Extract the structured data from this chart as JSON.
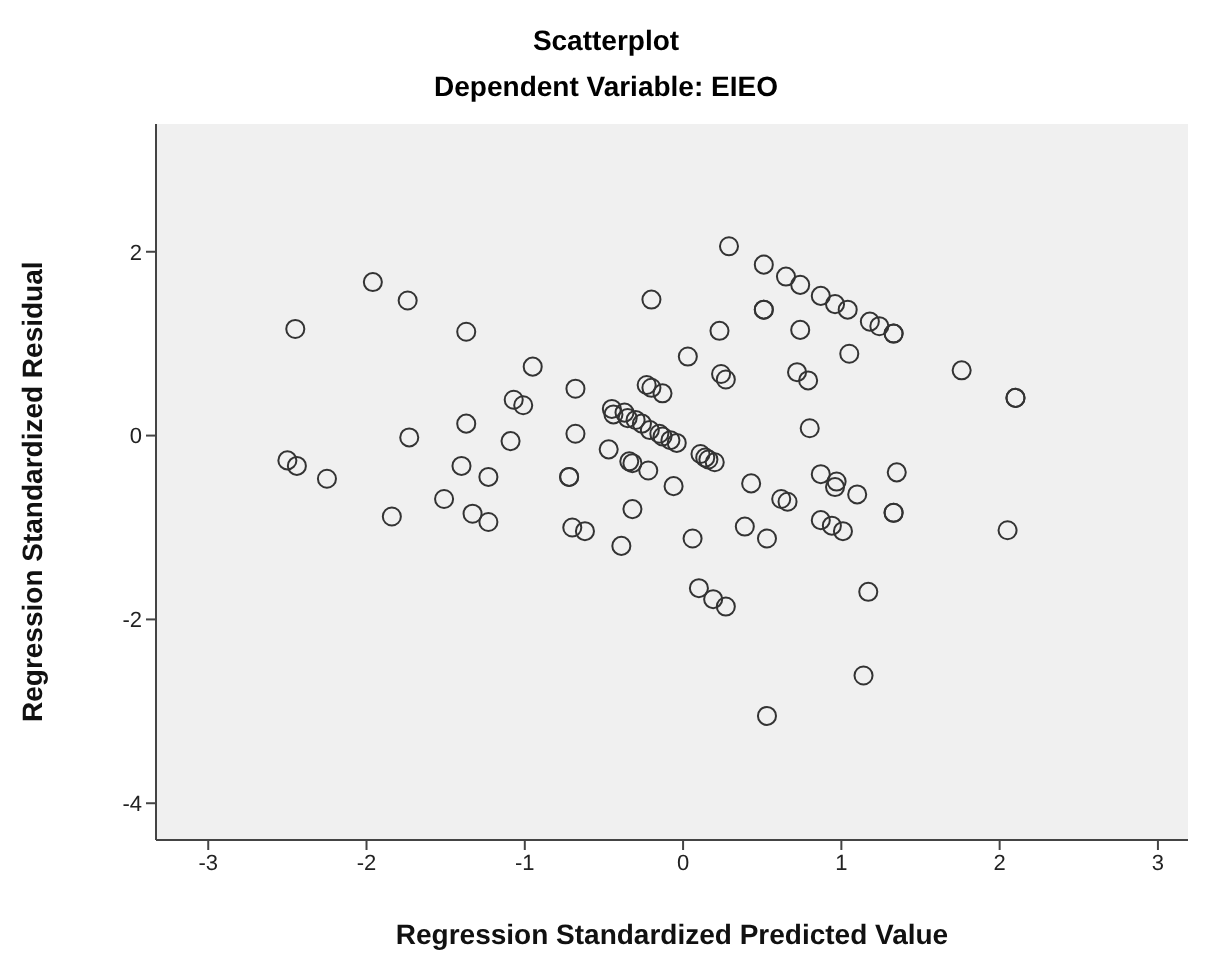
{
  "chart_data": {
    "type": "scatter",
    "title": "Scatterplot",
    "subtitle": "Dependent Variable: EIEO",
    "xlabel": "Regression Standardized Predicted Value",
    "ylabel": "Regression Standardized Residual",
    "xlim": [
      -3.33,
      3.19
    ],
    "ylim": [
      -4.4,
      3.39
    ],
    "xticks": [
      -3,
      -2,
      -1,
      0,
      1,
      2,
      3
    ],
    "yticks": [
      -4,
      -2,
      0,
      2
    ],
    "grid": false,
    "legend": false,
    "marker": "circle",
    "series": [
      {
        "color": "#333333",
        "x": [
          0.29,
          0.51,
          0.65,
          0.74,
          0.87,
          0.96,
          1.04,
          1.18,
          1.24,
          1.33,
          1.33,
          0.51,
          0.51,
          -1.96,
          -1.74,
          -2.45,
          -1.37,
          -0.2,
          0.23,
          0.74,
          0.03,
          1.05,
          -0.95,
          0.24,
          0.27,
          0.72,
          0.79,
          1.76,
          2.1,
          2.1,
          -0.68,
          -0.23,
          -0.2,
          -0.13,
          -1.07,
          -1.01,
          -0.45,
          -0.44,
          -0.37,
          -0.35,
          -0.3,
          -0.26,
          -0.21,
          -0.15,
          -0.13,
          -0.08,
          -0.04,
          0.8,
          -1.37,
          -1.73,
          -0.68,
          -1.09,
          -2.5,
          -2.44,
          -2.25,
          -1.4,
          -1.23,
          -1.51,
          -1.84,
          -1.33,
          -1.23,
          -0.72,
          -0.72,
          -0.47,
          -0.34,
          -0.32,
          -0.22,
          -0.06,
          -0.32,
          -0.7,
          -0.62,
          -0.39,
          0.11,
          0.14,
          0.16,
          0.2,
          0.06,
          0.43,
          0.62,
          0.66,
          0.39,
          0.53,
          0.87,
          0.97,
          0.96,
          1.1,
          1.35,
          1.33,
          1.33,
          0.87,
          0.94,
          1.01,
          2.05,
          0.1,
          0.19,
          0.27,
          1.17,
          1.14,
          0.53
        ],
        "values": [
          2.06,
          1.86,
          1.73,
          1.64,
          1.52,
          1.43,
          1.37,
          1.24,
          1.19,
          1.11,
          1.11,
          1.37,
          1.37,
          1.67,
          1.47,
          1.16,
          1.13,
          1.48,
          1.14,
          1.15,
          0.86,
          0.89,
          0.75,
          0.67,
          0.61,
          0.69,
          0.6,
          0.71,
          0.41,
          0.41,
          0.51,
          0.55,
          0.52,
          0.46,
          0.39,
          0.33,
          0.29,
          0.23,
          0.25,
          0.19,
          0.17,
          0.13,
          0.06,
          0.02,
          -0.01,
          -0.05,
          -0.08,
          0.08,
          0.13,
          -0.02,
          0.02,
          -0.06,
          -0.27,
          -0.33,
          -0.47,
          -0.33,
          -0.45,
          -0.69,
          -0.88,
          -0.85,
          -0.94,
          -0.45,
          -0.45,
          -0.15,
          -0.28,
          -0.3,
          -0.38,
          -0.55,
          -0.8,
          -1.0,
          -1.04,
          -1.2,
          -0.2,
          -0.24,
          -0.26,
          -0.29,
          -1.12,
          -0.52,
          -0.69,
          -0.72,
          -0.99,
          -1.12,
          -0.42,
          -0.5,
          -0.56,
          -0.64,
          -0.4,
          -0.84,
          -0.84,
          -0.92,
          -0.98,
          -1.04,
          -1.03,
          -1.66,
          -1.78,
          -1.86,
          -1.7,
          -2.61,
          -3.05
        ]
      }
    ]
  }
}
